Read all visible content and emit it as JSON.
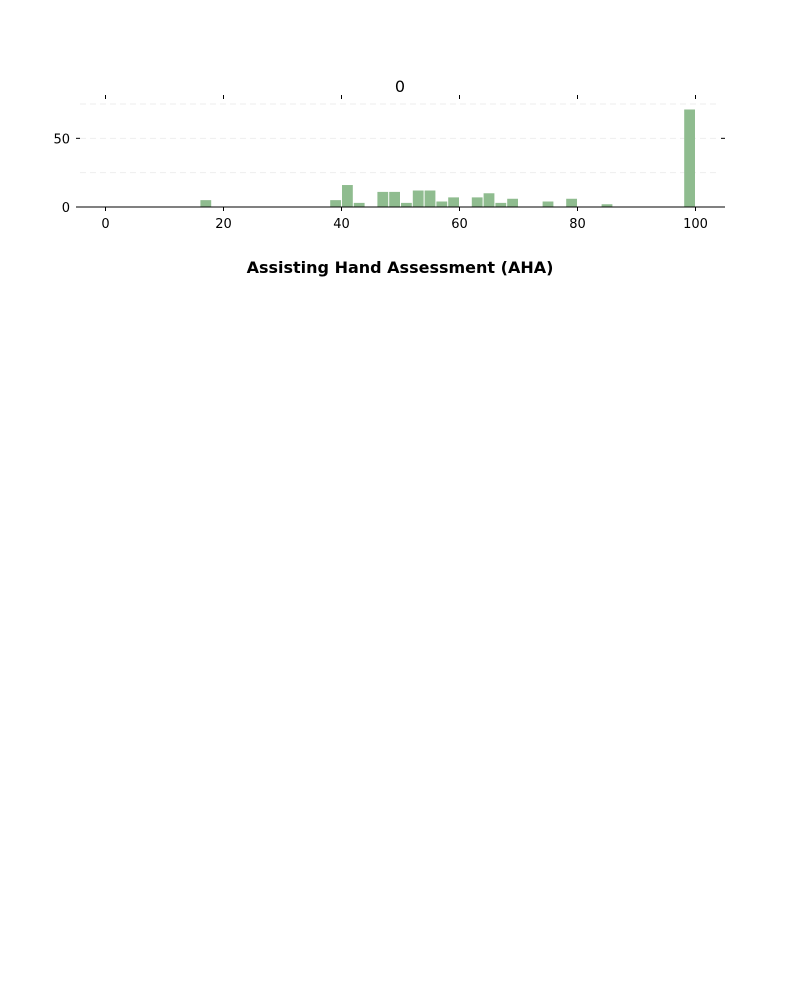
{
  "chart_data": {
    "type": "bar",
    "title": "0",
    "xlabel": "Assisting Hand Assessment (AHA)",
    "ylabel": "",
    "xlim": [
      -5,
      105
    ],
    "ylim": [
      0,
      75
    ],
    "x_ticks": [
      "0",
      "20",
      "40",
      "60",
      "80",
      "100"
    ],
    "y_ticks": [
      "0",
      "50"
    ],
    "grid": true,
    "bar_color": "#8fbc8f",
    "bin_width": 2,
    "series": [
      {
        "x": [
          16,
          38,
          40,
          42,
          46,
          48,
          50,
          52,
          54,
          56,
          58,
          62,
          64,
          66,
          68,
          74,
          78,
          84,
          98
        ],
        "values": [
          5,
          5,
          16,
          3,
          11,
          11,
          3,
          12,
          12,
          4,
          7,
          7,
          10,
          3,
          6,
          4,
          6,
          2,
          71
        ]
      }
    ]
  }
}
